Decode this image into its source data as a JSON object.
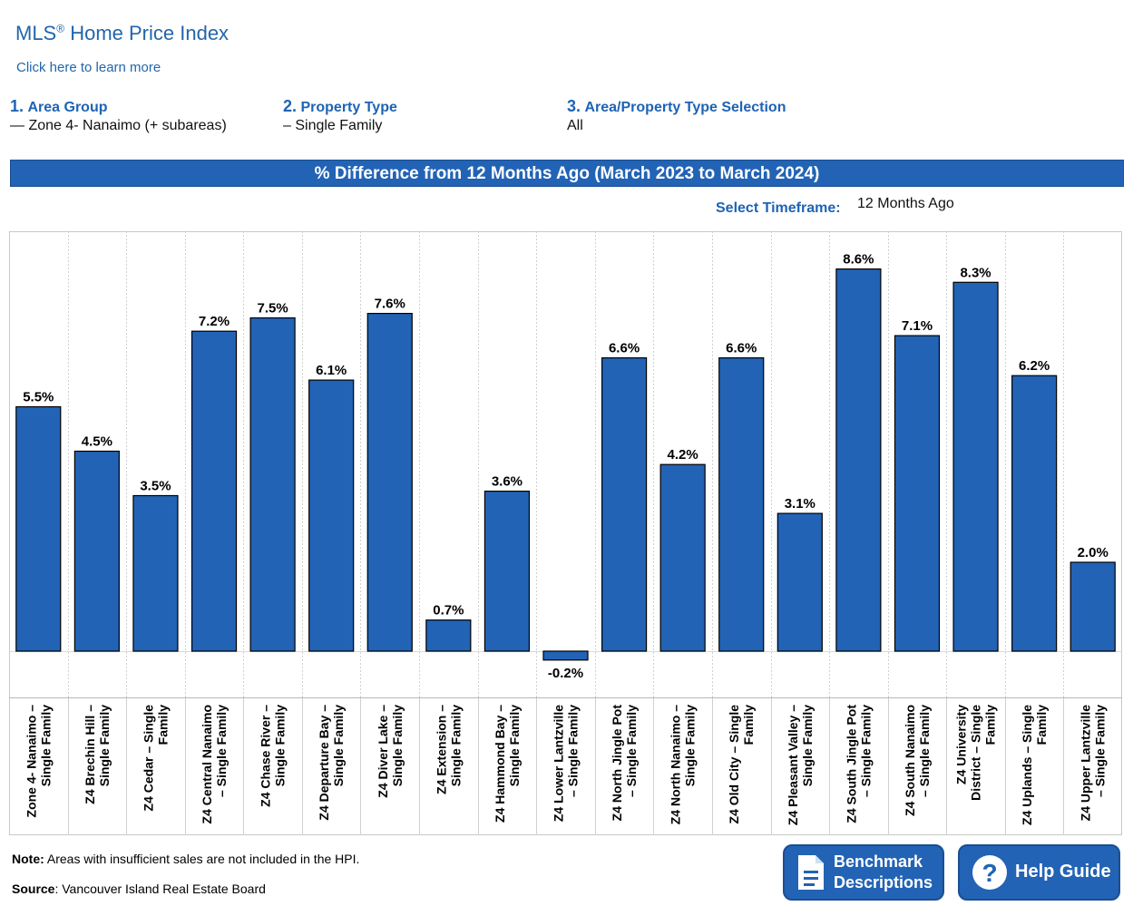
{
  "header": {
    "title": "MLS",
    "title_mark": "®",
    "title_rest": " Home Price Index",
    "learn_more": "Click here to learn more"
  },
  "filters": [
    {
      "num": "1.",
      "label": "Area Group",
      "value": "— Zone 4- Nanaimo (+ subareas)"
    },
    {
      "num": "2.",
      "label": "Property Type",
      "value": "– Single Family"
    },
    {
      "num": "3.",
      "label": "Area/Property Type Selection",
      "value": "All"
    }
  ],
  "banner": "% Difference from 12 Months Ago (March 2023 to March 2024)",
  "timeframe": {
    "label": "Select Timeframe:",
    "value": "12 Months Ago"
  },
  "colors": {
    "bar": "#2263b5",
    "accent": "#1e63b4"
  },
  "chart_data": {
    "type": "bar",
    "title": "% Difference from 12 Months Ago (March 2023 to March 2024)",
    "categories": [
      [
        "Zone 4- Nanaimo –",
        "Single Family"
      ],
      [
        "Z4 Brechin Hill –",
        "Single Family"
      ],
      [
        "Z4 Cedar – Single",
        "Family"
      ],
      [
        "Z4 Central Nanaimo",
        "– Single Family"
      ],
      [
        "Z4 Chase River –",
        "Single Family"
      ],
      [
        "Z4 Departure Bay –",
        "Single Family"
      ],
      [
        "Z4 Diver Lake –",
        "Single Family"
      ],
      [
        "Z4 Extension –",
        "Single Family"
      ],
      [
        "Z4 Hammond Bay –",
        "Single Family"
      ],
      [
        "Z4 Lower Lantzville",
        "– Single Family"
      ],
      [
        "Z4 North Jingle Pot",
        "– Single Family"
      ],
      [
        "Z4 North Nanaimo –",
        "Single Family"
      ],
      [
        "Z4 Old City – Single",
        "Family"
      ],
      [
        "Z4 Pleasant Valley –",
        "Single Family"
      ],
      [
        "Z4 South Jingle Pot",
        "– Single Family"
      ],
      [
        "Z4 South Nanaimo",
        "– Single Family"
      ],
      [
        "Z4 University",
        "District – Single",
        "Family"
      ],
      [
        "Z4 Uplands – Single",
        "Family"
      ],
      [
        "Z4 Upper Lantzville",
        "– Single Family"
      ]
    ],
    "values": [
      5.5,
      4.5,
      3.5,
      7.2,
      7.5,
      6.1,
      7.6,
      0.7,
      3.6,
      -0.2,
      6.6,
      4.2,
      6.6,
      3.1,
      8.6,
      7.1,
      8.3,
      6.2,
      2.0
    ],
    "labels": [
      "5.5%",
      "4.5%",
      "3.5%",
      "7.2%",
      "7.5%",
      "6.1%",
      "7.6%",
      "0.7%",
      "3.6%",
      "-0.2%",
      "6.6%",
      "4.2%",
      "6.6%",
      "3.1%",
      "8.6%",
      "7.1%",
      "8.3%",
      "6.2%",
      "2.0%"
    ],
    "unit": "%",
    "grid": false
  },
  "footer": {
    "note_label": "Note:",
    "note_text": " Areas with insufficient sales are not included in the HPI.",
    "source_label": "Source",
    "source_text": ": Vancouver Island Real Estate Board"
  },
  "buttons": {
    "benchmark_line1": "Benchmark",
    "benchmark_line2": "Descriptions",
    "help": "Help Guide"
  }
}
